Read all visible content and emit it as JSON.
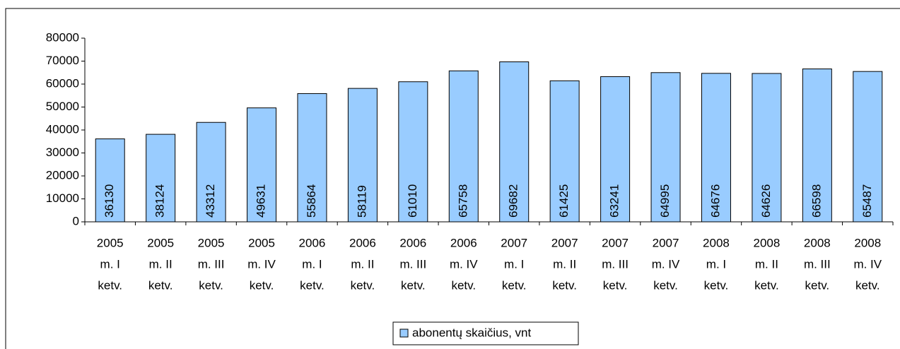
{
  "chart_data": {
    "type": "bar",
    "categories": [
      [
        "2005",
        "m. I",
        "ketv."
      ],
      [
        "2005",
        "m. II",
        "ketv."
      ],
      [
        "2005",
        "m. III",
        "ketv."
      ],
      [
        "2005",
        "m. IV",
        "ketv."
      ],
      [
        "2006",
        "m. I",
        "ketv."
      ],
      [
        "2006",
        "m. II",
        "ketv."
      ],
      [
        "2006",
        "m. III",
        "ketv."
      ],
      [
        "2006",
        "m. IV",
        "ketv."
      ],
      [
        "2007",
        "m. I",
        "ketv."
      ],
      [
        "2007",
        "m. II",
        "ketv."
      ],
      [
        "2007",
        "m. III",
        "ketv."
      ],
      [
        "2007",
        "m. IV",
        "ketv."
      ],
      [
        "2008",
        "m. I",
        "ketv."
      ],
      [
        "2008",
        "m. II",
        "ketv."
      ],
      [
        "2008",
        "m. III",
        "ketv."
      ],
      [
        "2008",
        "m. IV",
        "ketv."
      ]
    ],
    "series": [
      {
        "name": "abonentų skaičius, vnt",
        "color": "#99ccff",
        "values": [
          36130,
          38124,
          43312,
          49631,
          55864,
          58119,
          61010,
          65758,
          69682,
          61425,
          63241,
          64995,
          64676,
          64626,
          66598,
          65487
        ]
      }
    ],
    "ylim": [
      0,
      80000
    ],
    "yticks": [
      0,
      10000,
      20000,
      30000,
      40000,
      50000,
      60000,
      70000,
      80000
    ],
    "grid": false,
    "legend": "bottom"
  }
}
